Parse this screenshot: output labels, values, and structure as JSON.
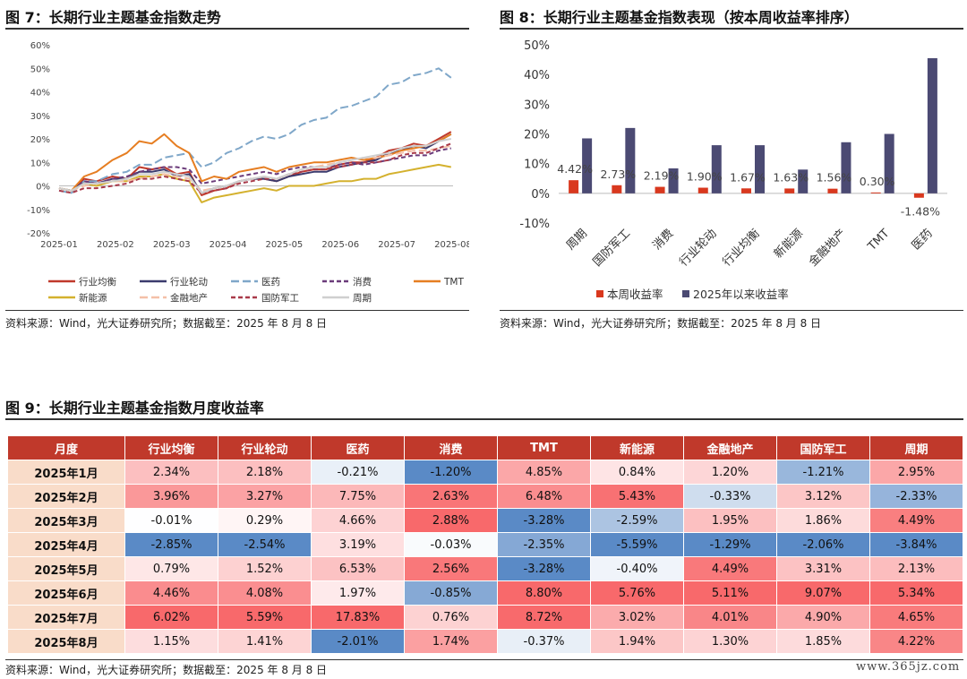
{
  "fig7": {
    "title": "图 7：长期行业主题基金指数走势",
    "source": "资料来源：Wind，光大证券研究所；数据截至：2025 年 8 月 8 日"
  },
  "fig8": {
    "title": "图 8：长期行业主题基金指数表现（按本周收益率排序）",
    "source": "资料来源：Wind，光大证券研究所；数据截至：2025 年 8 月 8 日"
  },
  "fig9": {
    "title": "图 9：长期行业主题基金指数月度收益率",
    "source": "资料来源：Wind，光大证券研究所；数据截至：2025 年 8 月 8 日"
  },
  "watermark": "www.365jz.com",
  "chart_data": [
    {
      "type": "line",
      "ylim": [
        -20,
        60
      ],
      "yticks": [
        "60%",
        "50%",
        "40%",
        "30%",
        "20%",
        "10%",
        "0%",
        "-10%",
        "-20%"
      ],
      "xticks": [
        "2025-01",
        "2025-02",
        "2025-03",
        "2025-04",
        "2025-05",
        "2025-06",
        "2025-07",
        "2025-08"
      ],
      "legend_position": "bottom",
      "series": [
        {
          "name": "行业均衡",
          "color": "#c0392b",
          "dash": "solid",
          "x": [
            0,
            7,
            14,
            21,
            30,
            38,
            45,
            52,
            59,
            66,
            73,
            80,
            87,
            94,
            101,
            108,
            115,
            122,
            129,
            136,
            143,
            150,
            157,
            164,
            171,
            178,
            185,
            192,
            199,
            206,
            213,
            220
          ],
          "values": [
            -1,
            -2,
            3,
            2,
            4,
            3,
            8,
            7,
            8,
            5,
            6,
            -4,
            -2,
            -1,
            2,
            3,
            3,
            2,
            4,
            6,
            7,
            7,
            9,
            10,
            10,
            12,
            15,
            16,
            18,
            17,
            20,
            23
          ]
        },
        {
          "name": "行业轮动",
          "color": "#3b3b6e",
          "dash": "solid",
          "x": [
            0,
            7,
            14,
            21,
            30,
            38,
            45,
            52,
            59,
            66,
            73,
            80,
            87,
            94,
            101,
            108,
            115,
            122,
            129,
            136,
            143,
            150,
            157,
            164,
            171,
            178,
            185,
            192,
            199,
            206,
            213,
            220
          ],
          "values": [
            -1,
            -2,
            2,
            1,
            3,
            3,
            6,
            6,
            7,
            4,
            5,
            -3,
            -1,
            0,
            2,
            3,
            3,
            2,
            4,
            5,
            6,
            6,
            8,
            9,
            10,
            11,
            14,
            15,
            17,
            16,
            19,
            22
          ]
        },
        {
          "name": "医药",
          "color": "#7fa7c9",
          "dash": "longdash",
          "x": [
            0,
            7,
            14,
            21,
            30,
            38,
            45,
            52,
            59,
            66,
            73,
            80,
            87,
            94,
            101,
            108,
            115,
            122,
            129,
            136,
            143,
            150,
            157,
            164,
            171,
            178,
            185,
            192,
            199,
            206,
            213,
            220
          ],
          "values": [
            -2,
            -3,
            2,
            2,
            5,
            6,
            9,
            9,
            12,
            13,
            14,
            8,
            10,
            14,
            16,
            19,
            21,
            20,
            22,
            26,
            28,
            29,
            33,
            34,
            36,
            38,
            43,
            44,
            47,
            48,
            50,
            46
          ]
        },
        {
          "name": "消费",
          "color": "#6b3b7a",
          "dash": "dash",
          "x": [
            0,
            7,
            14,
            21,
            30,
            38,
            45,
            52,
            59,
            66,
            73,
            80,
            87,
            94,
            101,
            108,
            115,
            122,
            129,
            136,
            143,
            150,
            157,
            164,
            171,
            178,
            185,
            192,
            199,
            206,
            213,
            220
          ],
          "values": [
            -1,
            -2,
            2,
            1,
            3,
            4,
            6,
            7,
            8,
            8,
            7,
            1,
            2,
            3,
            4,
            5,
            6,
            5,
            7,
            8,
            8,
            8,
            9,
            10,
            9,
            10,
            11,
            12,
            13,
            13,
            15,
            16
          ]
        },
        {
          "name": "TMT",
          "color": "#e67e22",
          "dash": "solid",
          "x": [
            0,
            7,
            14,
            21,
            30,
            38,
            45,
            52,
            59,
            66,
            73,
            80,
            87,
            94,
            101,
            108,
            115,
            122,
            129,
            136,
            143,
            150,
            157,
            164,
            171,
            178,
            185,
            192,
            199,
            206,
            213,
            220
          ],
          "values": [
            -1,
            -2,
            4,
            6,
            11,
            14,
            19,
            18,
            22,
            17,
            14,
            2,
            4,
            3,
            6,
            7,
            8,
            6,
            8,
            9,
            10,
            10,
            11,
            12,
            11,
            12,
            13,
            15,
            16,
            17,
            19,
            22
          ]
        },
        {
          "name": "新能源",
          "color": "#d4b12e",
          "dash": "solid",
          "x": [
            0,
            7,
            14,
            21,
            30,
            38,
            45,
            52,
            59,
            66,
            73,
            80,
            87,
            94,
            101,
            108,
            115,
            122,
            129,
            136,
            143,
            150,
            157,
            164,
            171,
            178,
            185,
            192,
            199,
            206,
            213,
            220
          ],
          "values": [
            -1,
            -2,
            1,
            0,
            2,
            2,
            4,
            4,
            5,
            3,
            2,
            -7,
            -5,
            -4,
            -3,
            -2,
            -1,
            -2,
            0,
            0,
            0,
            1,
            2,
            2,
            3,
            3,
            5,
            6,
            7,
            8,
            9,
            8
          ]
        },
        {
          "name": "金融地产",
          "color": "#f4c0a8",
          "dash": "longdash",
          "x": [
            0,
            7,
            14,
            21,
            30,
            38,
            45,
            52,
            59,
            66,
            73,
            80,
            87,
            94,
            101,
            108,
            115,
            122,
            129,
            136,
            143,
            150,
            157,
            164,
            171,
            178,
            185,
            192,
            199,
            206,
            213,
            220
          ],
          "values": [
            -1,
            -2,
            0,
            1,
            2,
            2,
            3,
            4,
            5,
            4,
            3,
            -2,
            -1,
            0,
            2,
            3,
            4,
            3,
            5,
            7,
            8,
            9,
            10,
            11,
            12,
            12,
            13,
            14,
            15,
            15,
            16,
            17
          ]
        },
        {
          "name": "国防军工",
          "color": "#a93a4a",
          "dash": "dash",
          "x": [
            0,
            7,
            14,
            21,
            30,
            38,
            45,
            52,
            59,
            66,
            73,
            80,
            87,
            94,
            101,
            108,
            115,
            122,
            129,
            136,
            143,
            150,
            157,
            164,
            171,
            178,
            185,
            192,
            199,
            206,
            213,
            220
          ],
          "values": [
            -2,
            -3,
            -1,
            -1,
            0,
            1,
            3,
            3,
            4,
            3,
            2,
            -3,
            -2,
            -1,
            1,
            2,
            3,
            3,
            5,
            6,
            7,
            7,
            8,
            9,
            10,
            10,
            11,
            13,
            14,
            14,
            16,
            18
          ]
        },
        {
          "name": "周期",
          "color": "#cfcfcf",
          "dash": "solid",
          "x": [
            0,
            7,
            14,
            21,
            30,
            38,
            45,
            52,
            59,
            66,
            73,
            80,
            87,
            94,
            101,
            108,
            115,
            122,
            129,
            136,
            143,
            150,
            157,
            164,
            171,
            178,
            185,
            192,
            199,
            206,
            213,
            220
          ],
          "values": [
            -1,
            -2,
            1,
            1,
            2,
            3,
            5,
            5,
            6,
            5,
            4,
            -3,
            -1,
            0,
            2,
            3,
            4,
            3,
            5,
            7,
            8,
            8,
            10,
            11,
            12,
            13,
            14,
            16,
            17,
            17,
            19,
            20
          ]
        }
      ]
    },
    {
      "type": "bar",
      "ylim": [
        -10,
        50
      ],
      "yticks": [
        "50%",
        "40%",
        "30%",
        "20%",
        "10%",
        "0%",
        "-10%"
      ],
      "categories": [
        "周期",
        "国防军工",
        "消费",
        "行业轮动",
        "行业均衡",
        "新能源",
        "金融地产",
        "TMT",
        "医药"
      ],
      "legend_position": "bottom",
      "series": [
        {
          "name": "本周收益率",
          "color": "#d9381e",
          "values": [
            4.42,
            2.73,
            2.19,
            1.9,
            1.67,
            1.63,
            1.56,
            0.3,
            -1.48
          ],
          "labels": [
            "4.42%",
            "2.73%",
            "2.19%",
            "1.90%",
            "1.67%",
            "1.63%",
            "1.56%",
            "0.30%",
            "-1.48%"
          ]
        },
        {
          "name": "2025年以来收益率",
          "color": "#4b4a73",
          "values": [
            18.5,
            22.0,
            8.4,
            16.2,
            16.2,
            8.0,
            17.2,
            20.0,
            45.5
          ]
        }
      ]
    },
    {
      "type": "table",
      "columns": [
        "月度",
        "行业均衡",
        "行业轮动",
        "医药",
        "消费",
        "TMT",
        "新能源",
        "金融地产",
        "国防军工",
        "周期"
      ],
      "rows": [
        {
          "month": "2025年1月",
          "values": [
            2.34,
            2.18,
            -0.21,
            -1.2,
            4.85,
            0.84,
            1.2,
            -1.21,
            2.95
          ],
          "labels": [
            "2.34%",
            "2.18%",
            "-0.21%",
            "-1.20%",
            "4.85%",
            "0.84%",
            "1.20%",
            "-1.21%",
            "2.95%"
          ]
        },
        {
          "month": "2025年2月",
          "values": [
            3.96,
            3.27,
            7.75,
            2.63,
            6.48,
            5.43,
            -0.33,
            3.12,
            -2.33
          ],
          "labels": [
            "3.96%",
            "3.27%",
            "7.75%",
            "2.63%",
            "6.48%",
            "5.43%",
            "-0.33%",
            "3.12%",
            "-2.33%"
          ]
        },
        {
          "month": "2025年3月",
          "values": [
            -0.01,
            0.29,
            4.66,
            2.88,
            -3.28,
            -2.59,
            1.95,
            1.86,
            4.49
          ],
          "labels": [
            "-0.01%",
            "0.29%",
            "4.66%",
            "2.88%",
            "-3.28%",
            "-2.59%",
            "1.95%",
            "1.86%",
            "4.49%"
          ]
        },
        {
          "month": "2025年4月",
          "values": [
            -2.85,
            -2.54,
            3.19,
            -0.03,
            -2.35,
            -5.59,
            -1.29,
            -2.06,
            -3.84
          ],
          "labels": [
            "-2.85%",
            "-2.54%",
            "3.19%",
            "-0.03%",
            "-2.35%",
            "-5.59%",
            "-1.29%",
            "-2.06%",
            "-3.84%"
          ]
        },
        {
          "month": "2025年5月",
          "values": [
            0.79,
            1.52,
            6.53,
            2.56,
            -3.28,
            -0.4,
            4.49,
            3.31,
            2.13
          ],
          "labels": [
            "0.79%",
            "1.52%",
            "6.53%",
            "2.56%",
            "-3.28%",
            "-0.40%",
            "4.49%",
            "3.31%",
            "2.13%"
          ]
        },
        {
          "month": "2025年6月",
          "values": [
            4.46,
            4.08,
            1.97,
            -0.85,
            8.8,
            5.76,
            5.11,
            9.07,
            5.34
          ],
          "labels": [
            "4.46%",
            "4.08%",
            "1.97%",
            "-0.85%",
            "8.80%",
            "5.76%",
            "5.11%",
            "9.07%",
            "5.34%"
          ]
        },
        {
          "month": "2025年7月",
          "values": [
            6.02,
            5.59,
            17.83,
            0.76,
            8.72,
            3.02,
            4.01,
            4.9,
            4.65
          ],
          "labels": [
            "6.02%",
            "5.59%",
            "17.83%",
            "0.76%",
            "8.72%",
            "3.02%",
            "4.01%",
            "4.90%",
            "4.65%"
          ]
        },
        {
          "month": "2025年8月",
          "values": [
            1.15,
            1.41,
            -2.01,
            1.74,
            -0.37,
            1.94,
            1.3,
            1.85,
            4.22
          ],
          "labels": [
            "1.15%",
            "1.41%",
            "-2.01%",
            "1.74%",
            "-0.37%",
            "1.94%",
            "1.30%",
            "1.85%",
            "4.22%"
          ]
        }
      ]
    }
  ]
}
